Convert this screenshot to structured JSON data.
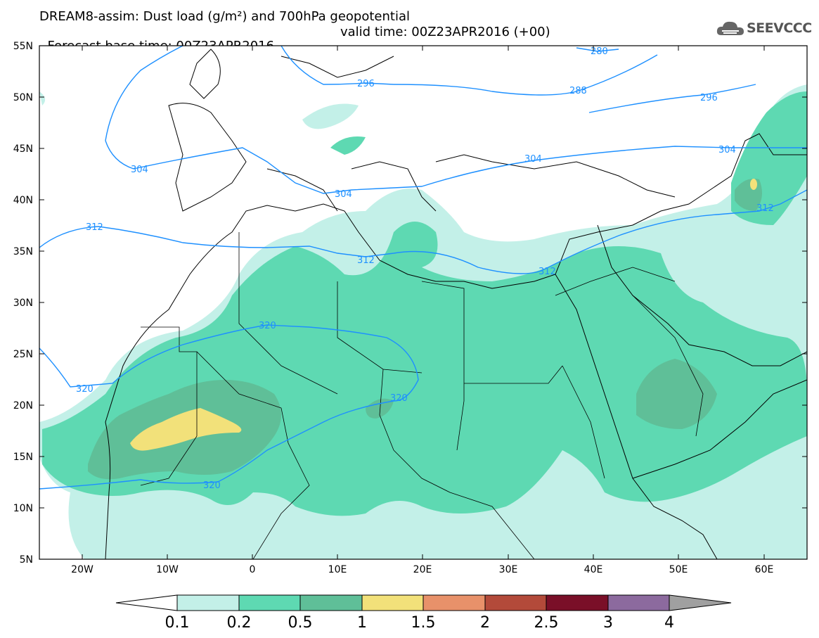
{
  "header": {
    "title_line1": "DREAM8-assim: Dust load (g/m²) and 700hPa geopotential",
    "base_time": "Forecast base time: 00Z23APR2016",
    "valid_time": "valid time: 00Z23APR2016 (+00)",
    "logo_text": "SEEVCCC",
    "logo_icon": "cloud-icon"
  },
  "map": {
    "lat_labels": [
      "55N",
      "50N",
      "45N",
      "40N",
      "35N",
      "30N",
      "25N",
      "20N",
      "15N",
      "10N",
      "5N"
    ],
    "lon_labels": [
      "20W",
      "10W",
      "0",
      "10E",
      "20E",
      "30E",
      "40E",
      "50E",
      "60E"
    ],
    "contour_labels": [
      "280",
      "288",
      "296",
      "296",
      "304",
      "304",
      "304",
      "304",
      "312",
      "312",
      "312",
      "312",
      "320",
      "320",
      "320",
      "320"
    ]
  },
  "colorbar": {
    "colors": [
      "#ffffff",
      "#c3f0e8",
      "#5ed9b2",
      "#5fbf98",
      "#f2e17a",
      "#e8916a",
      "#b34a3a",
      "#7a0f28",
      "#8c6a9e",
      "#a0a0a0"
    ],
    "labels": [
      "0.1",
      "0.2",
      "0.5",
      "1",
      "1.5",
      "2",
      "2.5",
      "3",
      "4"
    ]
  },
  "colors": {
    "contour": "#1e90ff",
    "ocean": "#ffffff",
    "border": "#000000"
  }
}
